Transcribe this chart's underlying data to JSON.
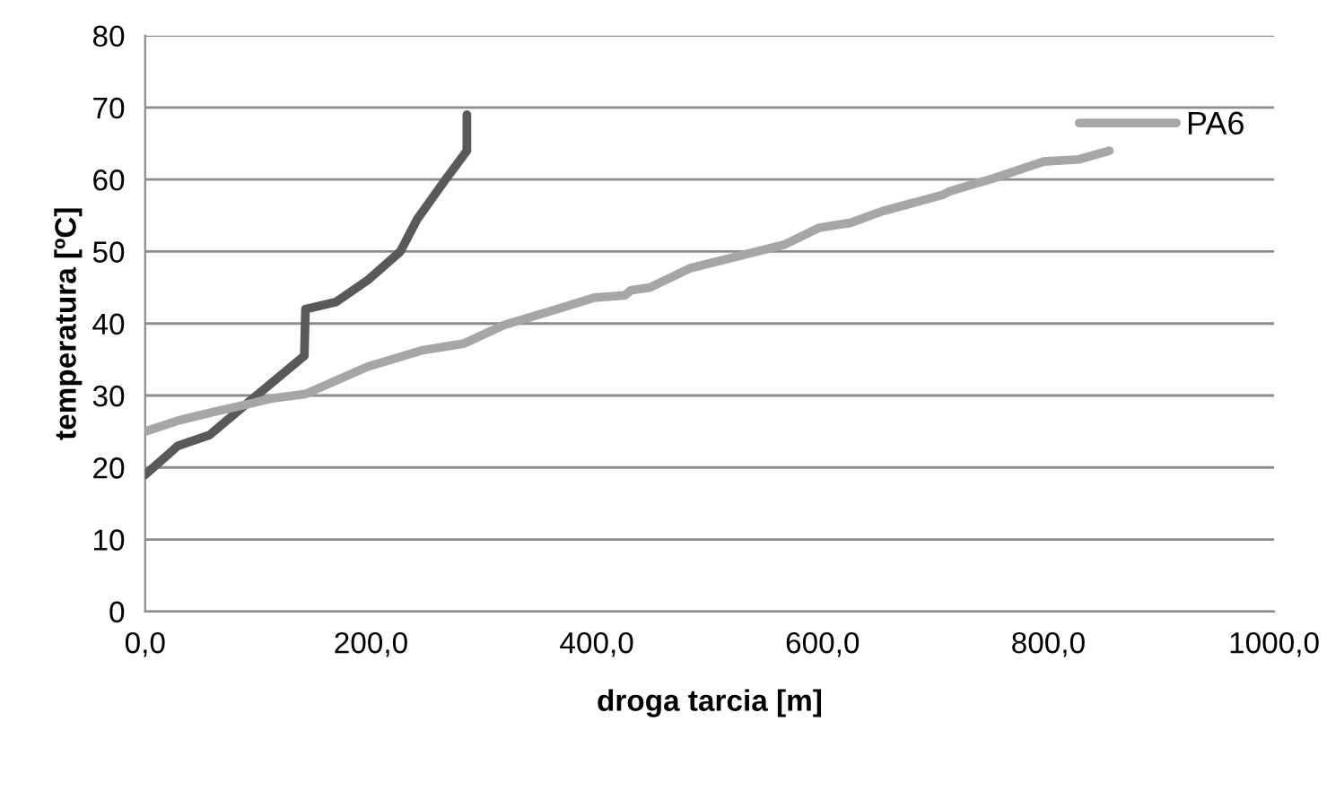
{
  "chart_data": {
    "type": "line",
    "xlabel": "droga tarcia [m]",
    "ylabel": "temperatura [ºC]",
    "xlim": [
      0,
      1000
    ],
    "xticks": [
      {
        "value": 0,
        "label": "0,0"
      },
      {
        "value": 200,
        "label": "200,0"
      },
      {
        "value": 400,
        "label": "400,0"
      },
      {
        "value": 600,
        "label": "600,0"
      },
      {
        "value": 800,
        "label": "800,0"
      },
      {
        "value": 1000,
        "label": "1000,0"
      }
    ],
    "ylim": [
      0,
      80
    ],
    "yticks": [
      0,
      10,
      20,
      30,
      40,
      50,
      60,
      70,
      80
    ],
    "grid": "y",
    "legend": "top right",
    "marker": "none",
    "line_style": "solid",
    "series": [
      {
        "color": "#595959",
        "x": [
          0,
          29,
          57,
          91,
          141,
          142,
          169,
          197,
          226,
          241,
          266,
          285,
          285
        ],
        "values": [
          19,
          23,
          24.5,
          29,
          35.5,
          42,
          43,
          46,
          50,
          54.5,
          60,
          64,
          69
        ]
      },
      {
        "name": "PA6",
        "color": "#a6a6a6",
        "x": [
          0,
          29,
          60,
          91,
          112,
          142,
          197,
          246,
          282,
          318,
          365,
          398,
          425,
          430,
          447,
          483,
          567,
          597,
          625,
          653,
          707,
          713,
          752,
          796,
          827,
          854
        ],
        "values": [
          25,
          26.5,
          27.7,
          28.8,
          29.6,
          30.2,
          34,
          36.3,
          37.2,
          39.8,
          42,
          43.6,
          43.9,
          44.6,
          45,
          47.7,
          51,
          53.3,
          54,
          55.6,
          57.9,
          58.4,
          60.2,
          62.5,
          62.8,
          64
        ]
      }
    ]
  }
}
